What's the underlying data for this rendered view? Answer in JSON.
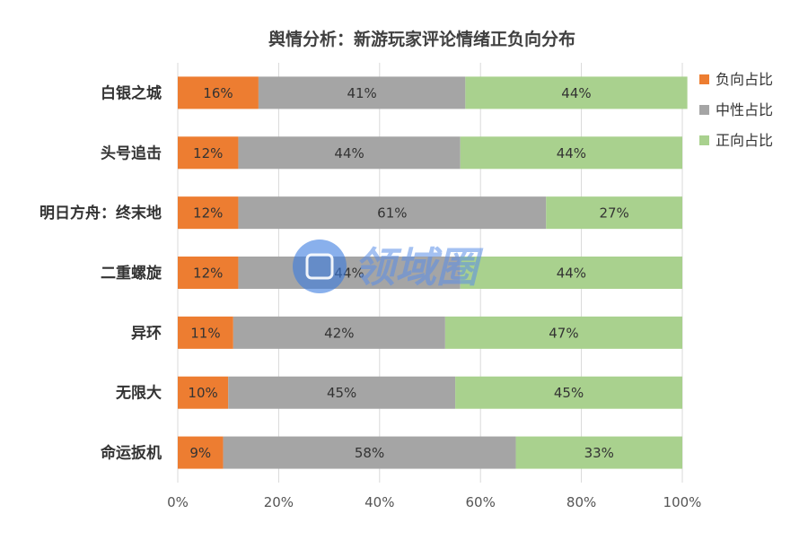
{
  "chart_data": {
    "type": "bar",
    "orientation": "horizontal",
    "stacked": "percent",
    "title": "舆情分析：新游玩家评论情绪正负向分布",
    "categories": [
      "白银之城",
      "头号追击",
      "明日方舟：终末地",
      "二重螺旋",
      "异环",
      "无限大",
      "命运扳机"
    ],
    "series": [
      {
        "name": "负向占比",
        "color": "#ed7d31",
        "values": [
          16,
          12,
          12,
          12,
          11,
          10,
          9
        ]
      },
      {
        "name": "中性占比",
        "color": "#a5a5a5",
        "values": [
          41,
          44,
          61,
          44,
          42,
          45,
          58
        ]
      },
      {
        "name": "正向占比",
        "color": "#a9d18e",
        "values": [
          44,
          44,
          27,
          44,
          47,
          45,
          33
        ]
      }
    ],
    "xlim": [
      0,
      100
    ],
    "x_ticks": [
      "0%",
      "20%",
      "40%",
      "60%",
      "80%",
      "100%"
    ],
    "value_suffix": "%",
    "grid": "vertical",
    "legend": "right"
  },
  "watermark": {
    "text": "领域圈",
    "color": "#3a7be0"
  }
}
